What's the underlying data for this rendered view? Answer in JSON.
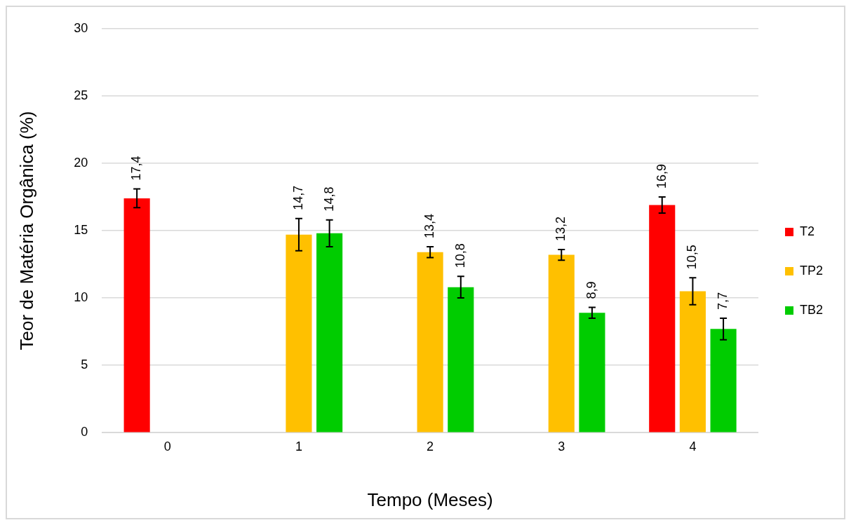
{
  "chart_data": {
    "type": "bar",
    "xlabel": "Tempo (Meses)",
    "ylabel": "Teor de Matéria Orgânica (%)",
    "categories": [
      "0",
      "1",
      "2",
      "3",
      "4"
    ],
    "series": [
      {
        "name": "T2",
        "color": "#ff0000",
        "values": [
          17.4,
          null,
          null,
          null,
          16.9
        ],
        "errors": [
          0.7,
          null,
          null,
          null,
          0.6
        ],
        "value_labels": [
          "17,4",
          null,
          null,
          null,
          "16,9"
        ]
      },
      {
        "name": "TP2",
        "color": "#ffc000",
        "values": [
          null,
          14.7,
          13.4,
          13.2,
          10.5
        ],
        "errors": [
          null,
          1.2,
          0.4,
          0.4,
          1.0
        ],
        "value_labels": [
          null,
          "14,7",
          "13,4",
          "13,2",
          "10,5"
        ]
      },
      {
        "name": "TB2",
        "color": "#00cc00",
        "values": [
          null,
          14.8,
          10.8,
          8.9,
          7.7
        ],
        "errors": [
          null,
          1.0,
          0.8,
          0.4,
          0.8
        ],
        "value_labels": [
          null,
          "14,8",
          "10,8",
          "8,9",
          "7,7"
        ]
      }
    ],
    "ylim": [
      0,
      30
    ],
    "yticks": [
      0,
      5,
      10,
      15,
      20,
      25,
      30
    ],
    "grid": "y",
    "legend": "right"
  }
}
